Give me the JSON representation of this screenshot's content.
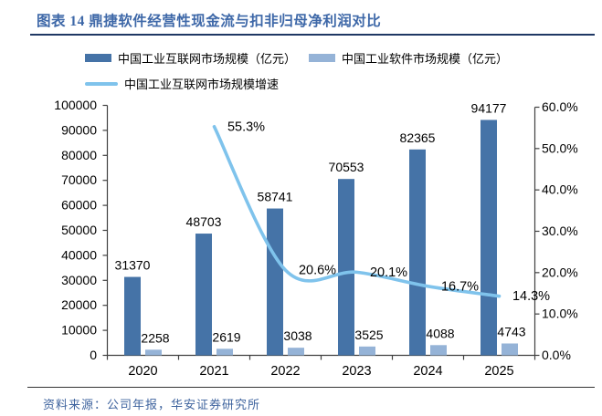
{
  "title": "图表 14 鼎捷软件经营性现金流与扣非归母净利润对比",
  "source": "资料来源：公司年报，华安证券研究所",
  "colors": {
    "bar1": "#4573A7",
    "bar2": "#95B3D7",
    "line": "#7FC3EC",
    "title_text": "#3E68A8",
    "source_text": "#3E639E",
    "title_rule": "#1F3864",
    "axis": "#404040",
    "label_text": "#000000"
  },
  "legend": [
    {
      "label": "中国工业互联网市场规模（亿元）",
      "type": "bar",
      "color": "#4573A7"
    },
    {
      "label": "中国工业软件市场规模（亿元）",
      "type": "bar",
      "color": "#95B3D7"
    },
    {
      "label": "中国工业互联网市场规模增速",
      "type": "line",
      "color": "#7FC3EC"
    }
  ],
  "chart_data": {
    "type": "bar",
    "subtype": "combo-bar-line",
    "categories": [
      "2020",
      "2021",
      "2022",
      "2023",
      "2024",
      "2025"
    ],
    "series": [
      {
        "name": "中国工业互联网市场规模（亿元）",
        "type": "bar",
        "axis": "left",
        "values": [
          31370,
          48703,
          58741,
          70553,
          82365,
          94177
        ],
        "data_labels": [
          "31370",
          "48703",
          "58741",
          "70553",
          "82365",
          "94177"
        ]
      },
      {
        "name": "中国工业软件市场规模（亿元）",
        "type": "bar",
        "axis": "left",
        "values": [
          2258,
          2619,
          3038,
          3525,
          4088,
          4743
        ],
        "data_labels": [
          "2258",
          "2619",
          "3038",
          "3525",
          "4088",
          "4743"
        ]
      },
      {
        "name": "中国工业互联网市场规模增速",
        "type": "line",
        "axis": "right",
        "smooth": true,
        "values": [
          null,
          55.3,
          20.6,
          20.1,
          16.7,
          14.3
        ],
        "data_labels": [
          null,
          "55.3%",
          "20.6%",
          "20.1%",
          "16.7%",
          "14.3%"
        ]
      }
    ],
    "left_axis": {
      "min": 0,
      "max": 100000,
      "step": 10000,
      "tick_labels": [
        "0",
        "10000",
        "20000",
        "30000",
        "40000",
        "50000",
        "60000",
        "70000",
        "80000",
        "90000",
        "100000"
      ]
    },
    "right_axis": {
      "min": 0,
      "max": 60,
      "step": 10,
      "tick_labels": [
        "0.0%",
        "10.0%",
        "20.0%",
        "30.0%",
        "40.0%",
        "50.0%",
        "60.0%"
      ]
    },
    "grid": false,
    "legend_position": "top"
  }
}
